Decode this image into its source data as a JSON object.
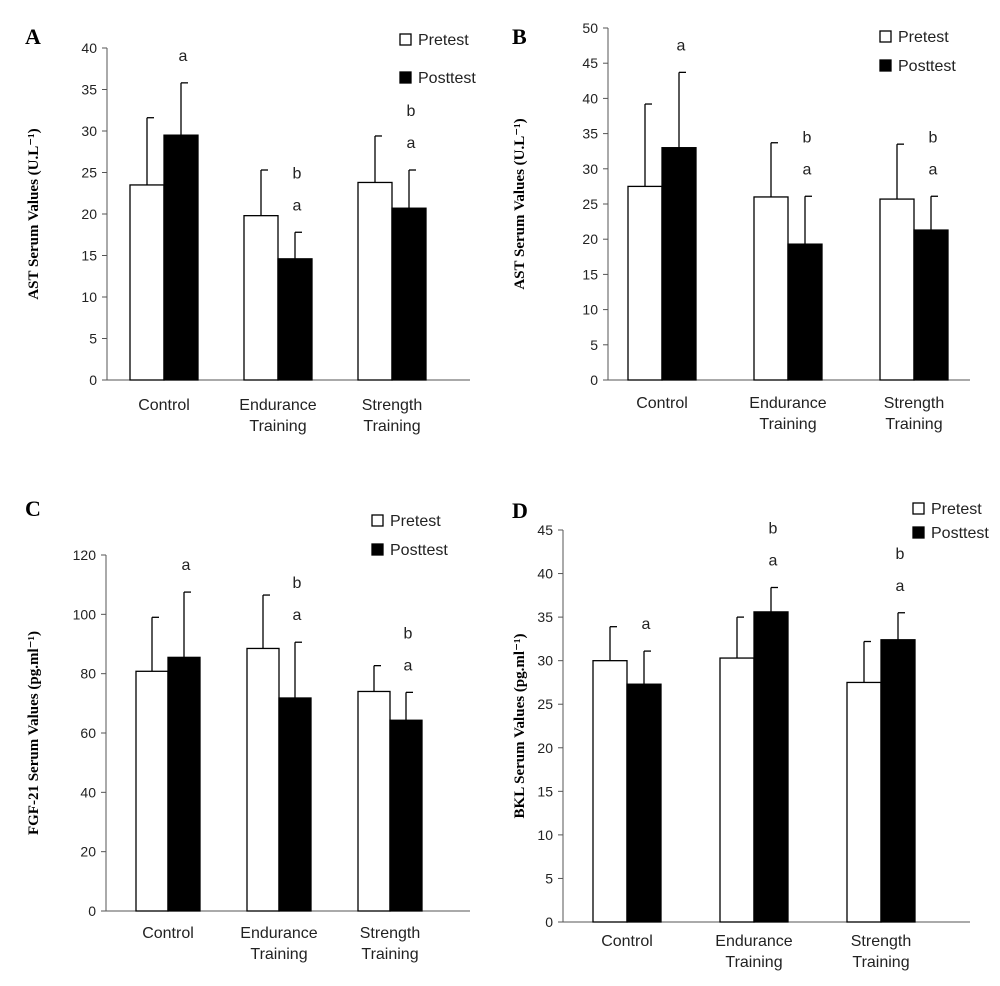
{
  "chart_data": [
    {
      "id": "A",
      "panel_label": "A",
      "type": "bar",
      "title": "",
      "xlabel": "",
      "ylabel": "AST Serum Values (U.L⁻¹)",
      "ylim": [
        0,
        40
      ],
      "yticks": [
        0,
        5,
        10,
        15,
        20,
        25,
        30,
        35,
        40
      ],
      "legend_position": "top-right",
      "categories": [
        [
          "Control"
        ],
        [
          "Endurance",
          "Training"
        ],
        [
          "Strength",
          "Training"
        ]
      ],
      "series": [
        {
          "name": "Pretest",
          "color": "#ffffff",
          "values": [
            23.5,
            19.8,
            23.8
          ],
          "errors": [
            8.1,
            5.5,
            5.6
          ],
          "annotations": [
            "",
            "",
            ""
          ]
        },
        {
          "name": "Posttest",
          "color": "#000000",
          "values": [
            29.5,
            14.6,
            20.7
          ],
          "errors": [
            6.3,
            3.2,
            4.6
          ],
          "annotations": [
            [
              "a"
            ],
            [
              "b",
              "a"
            ],
            [
              "b",
              "a"
            ]
          ]
        }
      ],
      "grid": false
    },
    {
      "id": "B",
      "panel_label": "B",
      "type": "bar",
      "title": "",
      "xlabel": "",
      "ylabel": "AST Serum Values (U.L⁻¹)",
      "ylim": [
        0,
        50
      ],
      "yticks": [
        0,
        5,
        10,
        15,
        20,
        25,
        30,
        35,
        40,
        45,
        50
      ],
      "legend_position": "top-right",
      "categories": [
        [
          "Control"
        ],
        [
          "Endurance",
          "Training"
        ],
        [
          "Strength",
          "Training"
        ]
      ],
      "series": [
        {
          "name": "Pretest",
          "color": "#ffffff",
          "values": [
            27.5,
            26.0,
            25.7
          ],
          "errors": [
            11.7,
            7.7,
            7.8
          ],
          "annotations": [
            "",
            "",
            ""
          ]
        },
        {
          "name": "Posttest",
          "color": "#000000",
          "values": [
            33.0,
            19.3,
            21.3
          ],
          "errors": [
            10.7,
            6.8,
            4.8
          ],
          "annotations": [
            [
              "a"
            ],
            [
              "b",
              "a"
            ],
            [
              "b",
              "a"
            ]
          ]
        }
      ],
      "grid": false
    },
    {
      "id": "C",
      "panel_label": "C",
      "type": "bar",
      "title": "",
      "xlabel": "",
      "ylabel": "FGF-21 Serum Values (pg.ml⁻¹)",
      "ylim": [
        0,
        120
      ],
      "yticks": [
        0,
        20,
        40,
        60,
        80,
        100,
        120
      ],
      "legend_position": "top-right",
      "categories": [
        [
          "Control"
        ],
        [
          "Endurance",
          "Training"
        ],
        [
          "Strength",
          "Training"
        ]
      ],
      "series": [
        {
          "name": "Pretest",
          "color": "#ffffff",
          "values": [
            80.8,
            88.5,
            74.0
          ],
          "errors": [
            18.2,
            18.0,
            8.7
          ],
          "annotations": [
            "",
            "",
            ""
          ]
        },
        {
          "name": "Posttest",
          "color": "#000000",
          "values": [
            85.5,
            71.8,
            64.3
          ],
          "errors": [
            22.0,
            18.8,
            9.4
          ],
          "annotations": [
            [
              "a"
            ],
            [
              "b",
              "a"
            ],
            [
              "b",
              "a"
            ]
          ]
        }
      ],
      "grid": false
    },
    {
      "id": "D",
      "panel_label": "D",
      "type": "bar",
      "title": "",
      "xlabel": "",
      "ylabel": "BKL Serum Values (pg.ml⁻¹)",
      "ylim": [
        0,
        45
      ],
      "yticks": [
        0,
        5,
        10,
        15,
        20,
        25,
        30,
        35,
        40,
        45
      ],
      "legend_position": "top-right",
      "categories": [
        [
          "Control"
        ],
        [
          "Endurance",
          "Training"
        ],
        [
          "Strength",
          "Training"
        ]
      ],
      "series": [
        {
          "name": "Pretest",
          "color": "#ffffff",
          "values": [
            30.0,
            30.3,
            27.5
          ],
          "errors": [
            3.9,
            4.7,
            4.7
          ],
          "annotations": [
            "",
            "",
            ""
          ]
        },
        {
          "name": "Posttest",
          "color": "#000000",
          "values": [
            27.3,
            35.6,
            32.4
          ],
          "errors": [
            3.8,
            2.8,
            3.1
          ],
          "annotations": [
            [
              "a"
            ],
            [
              "b",
              "a"
            ],
            [
              "b",
              "a"
            ]
          ]
        }
      ],
      "grid": false
    }
  ]
}
